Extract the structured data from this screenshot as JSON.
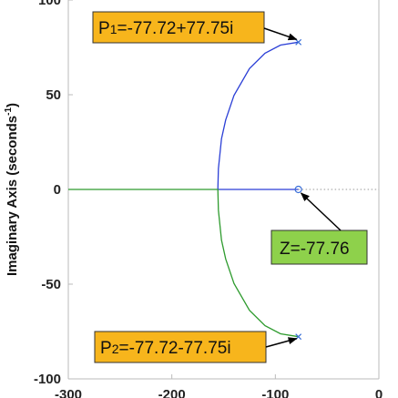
{
  "chart_data": {
    "type": "line",
    "title": "",
    "xlabel": "",
    "ylabel": "Imaginary Axis (seconds",
    "ylabel_superscript": "-1",
    "ylabel_suffix": ")",
    "xlim": [
      -300,
      0
    ],
    "ylim": [
      -100,
      100
    ],
    "xticks": [
      -300,
      -200,
      -100,
      0
    ],
    "yticks": [
      -100,
      -50,
      0,
      50,
      100
    ],
    "grid": false,
    "colors": {
      "branch_upper": "#2b3fd6",
      "branch_lower": "#2e9b2e",
      "marker": "#3a6fd8",
      "box_orange": "#f7b51c",
      "box_green": "#8ed14b",
      "axis": "#bbbbbb"
    },
    "poles": [
      {
        "label": "P",
        "subscript": "1",
        "value": "=-77.72+77.75i",
        "re": -77.72,
        "im": 77.75
      },
      {
        "label": "P",
        "subscript": "2",
        "value": "=-77.72-77.75i",
        "re": -77.72,
        "im": -77.75
      }
    ],
    "zeros": [
      {
        "label": "Z=-77.76",
        "re": -77.76,
        "im": 0
      }
    ],
    "branches": [
      {
        "name": "",
        "color": "#2b3fd6",
        "points": [
          [
            -77.72,
            77.75
          ],
          [
            -95,
            76.2
          ],
          [
            -110,
            71.9
          ],
          [
            -125,
            63.8
          ],
          [
            -140,
            49.6
          ],
          [
            -148,
            36.7
          ],
          [
            -152,
            26.8
          ],
          [
            -155,
            10.9
          ],
          [
            -155.5,
            0
          ],
          [
            -130,
            0
          ],
          [
            -100,
            0
          ],
          [
            -77.76,
            0
          ]
        ]
      },
      {
        "name": "",
        "color": "#2e9b2e",
        "points": [
          [
            -77.72,
            -77.75
          ],
          [
            -95,
            -76.2
          ],
          [
            -110,
            -71.9
          ],
          [
            -125,
            -63.8
          ],
          [
            -140,
            -49.6
          ],
          [
            -148,
            -36.7
          ],
          [
            -152,
            -26.8
          ],
          [
            -155,
            -10.9
          ],
          [
            -155.5,
            0
          ],
          [
            -200,
            0
          ],
          [
            -250,
            0
          ],
          [
            -300,
            0
          ]
        ]
      }
    ],
    "real_axis_dotted_from": -77.76
  }
}
